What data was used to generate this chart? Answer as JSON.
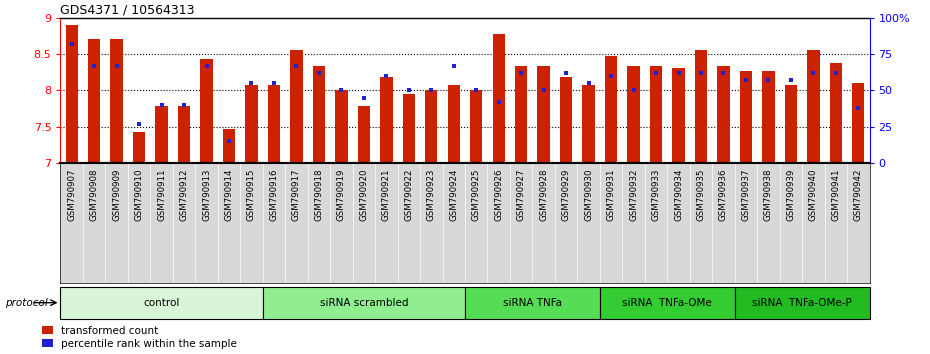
{
  "title": "GDS4371 / 10564313",
  "samples": [
    "GSM790907",
    "GSM790908",
    "GSM790909",
    "GSM790910",
    "GSM790911",
    "GSM790912",
    "GSM790913",
    "GSM790914",
    "GSM790915",
    "GSM790916",
    "GSM790917",
    "GSM790918",
    "GSM790919",
    "GSM790920",
    "GSM790921",
    "GSM790922",
    "GSM790923",
    "GSM790924",
    "GSM790925",
    "GSM790926",
    "GSM790927",
    "GSM790928",
    "GSM790929",
    "GSM790930",
    "GSM790931",
    "GSM790932",
    "GSM790933",
    "GSM790934",
    "GSM790935",
    "GSM790936",
    "GSM790937",
    "GSM790938",
    "GSM790939",
    "GSM790940",
    "GSM790941",
    "GSM790942"
  ],
  "red_values": [
    8.9,
    8.7,
    8.7,
    7.42,
    7.78,
    7.78,
    8.43,
    7.47,
    8.07,
    8.07,
    8.55,
    8.33,
    8.0,
    7.78,
    8.18,
    7.95,
    8.0,
    8.07,
    8.0,
    8.78,
    8.33,
    8.33,
    8.18,
    8.07,
    8.47,
    8.33,
    8.33,
    8.3,
    8.55,
    8.33,
    8.27,
    8.27,
    8.07,
    8.55,
    8.38,
    8.1
  ],
  "blue_values": [
    82,
    67,
    67,
    27,
    40,
    40,
    67,
    15,
    55,
    55,
    67,
    62,
    50,
    45,
    60,
    50,
    50,
    67,
    50,
    42,
    62,
    50,
    62,
    55,
    60,
    50,
    62,
    62,
    62,
    62,
    57,
    57,
    57,
    62,
    62,
    38
  ],
  "groups": [
    {
      "label": "control",
      "start": 0,
      "end": 9,
      "color": "#d8f5d8"
    },
    {
      "label": "siRNA scrambled",
      "start": 9,
      "end": 18,
      "color": "#90ee90"
    },
    {
      "label": "siRNA TNFa",
      "start": 18,
      "end": 24,
      "color": "#55dd55"
    },
    {
      "label": "siRNA  TNFa-OMe",
      "start": 24,
      "end": 30,
      "color": "#33cc33"
    },
    {
      "label": "siRNA  TNFa-OMe-P",
      "start": 30,
      "end": 36,
      "color": "#22bb22"
    }
  ],
  "ylim_left": [
    7.0,
    9.0
  ],
  "ylim_right": [
    0,
    100
  ],
  "bar_color_red": "#cc2200",
  "bar_color_blue": "#2222cc",
  "bar_width": 0.55,
  "protocol_label": "protocol",
  "legend_red": "transformed count",
  "legend_blue": "percentile rank within the sample",
  "ybase": 7.0,
  "yticks_left": [
    7.0,
    7.5,
    8.0,
    8.5,
    9.0
  ],
  "ytick_labels_left": [
    "7",
    "7.5",
    "8",
    "8.5",
    "9"
  ],
  "yticks_right": [
    0,
    25,
    50,
    75,
    100
  ],
  "ytick_labels_right": [
    "0",
    "25",
    "50",
    "75",
    "100%"
  ],
  "grid_values": [
    7.5,
    8.0,
    8.5
  ]
}
